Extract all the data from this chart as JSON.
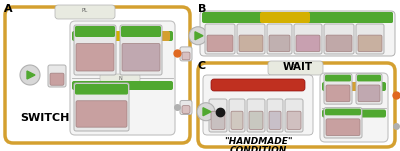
{
  "fig_width": 4.0,
  "fig_height": 1.51,
  "dpi": 100,
  "bg_color": "#ffffff",
  "orange": "#D4A030",
  "light_gray": "#E8E8E8",
  "mid_gray": "#B0B0B0",
  "white": "#FFFFFF",
  "green": "#50A830",
  "yellow": "#D4B000",
  "red": "#C03020",
  "label_fontsize": 8,
  "text_fontsize": 6,
  "switch_text": "SWITCH",
  "wait_text": "WAIT",
  "condition_line1": "\"HANDMADE\"",
  "condition_line2": "CONDITION"
}
